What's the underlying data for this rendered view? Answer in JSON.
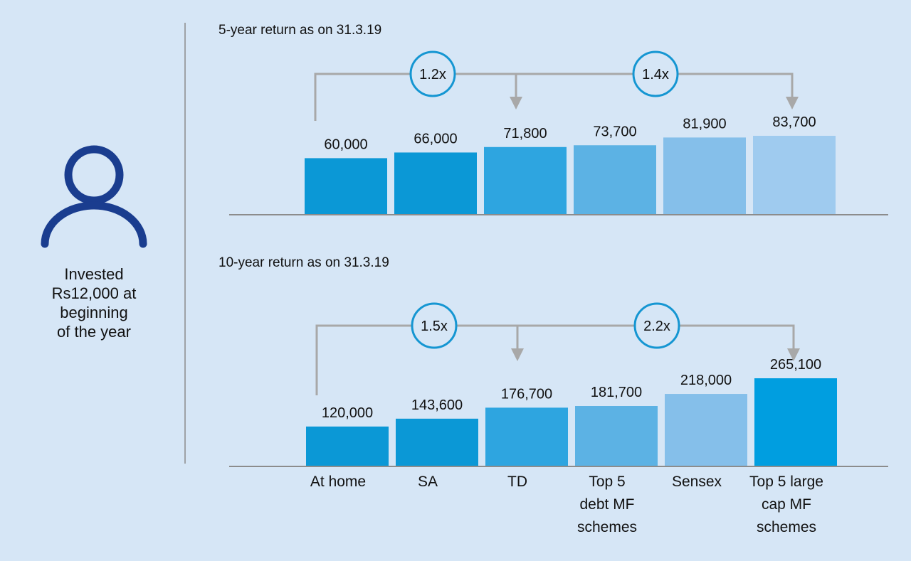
{
  "colors": {
    "background": "#d6e6f6",
    "icon": "#1a3d8f",
    "circle_stroke": "#1596d2",
    "connector": "#a8a8a8",
    "axis": "#8c8c8c",
    "text": "#111111"
  },
  "person": {
    "icon": "person-icon",
    "caption_lines": [
      "Invested",
      "Rs12,000 at",
      "beginning",
      "of the year"
    ]
  },
  "chart_data": [
    {
      "type": "bar",
      "title": "5-year return as on 31.3.19",
      "categories": [
        "At home",
        "SA",
        "TD",
        "Top 5 debt MF schemes",
        "Sensex",
        "Top 5 large cap MF schemes"
      ],
      "values": [
        60000,
        66000,
        71800,
        73700,
        81900,
        83700
      ],
      "value_labels": [
        "60,000",
        "66,000",
        "71,800",
        "73,700",
        "81,900",
        "83,700"
      ],
      "bar_colors": [
        "#0b98d6",
        "#0b98d6",
        "#2ea5e0",
        "#5cb2e4",
        "#85bfea",
        "#9fcbef"
      ],
      "multipliers": [
        {
          "label": "1.2x",
          "from": "At home",
          "to": "TD"
        },
        {
          "label": "1.4x",
          "from": "TD",
          "to": "Top 5 large cap MF schemes"
        }
      ]
    },
    {
      "type": "bar",
      "title": "10-year return as on 31.3.19",
      "categories": [
        "At home",
        "SA",
        "TD",
        "Top 5 debt MF schemes",
        "Sensex",
        "Top 5 large cap MF schemes"
      ],
      "category_labels": [
        [
          "At home"
        ],
        [
          "SA"
        ],
        [
          "TD"
        ],
        [
          "Top 5",
          "debt MF",
          "schemes"
        ],
        [
          "Sensex"
        ],
        [
          "Top 5 large",
          "cap MF",
          "schemes"
        ]
      ],
      "values": [
        120000,
        143600,
        176700,
        181700,
        218000,
        265100
      ],
      "value_labels": [
        "120,000",
        "143,600",
        "176,700",
        "181,700",
        "218,000",
        "265,100"
      ],
      "bar_colors": [
        "#0b98d6",
        "#0b98d6",
        "#2ea5e0",
        "#5cb2e4",
        "#85bfea",
        "#009ee0"
      ],
      "multipliers": [
        {
          "label": "1.5x",
          "from": "At home",
          "to": "TD"
        },
        {
          "label": "2.2x",
          "from": "TD",
          "to": "Top 5 large cap MF schemes"
        }
      ]
    }
  ]
}
